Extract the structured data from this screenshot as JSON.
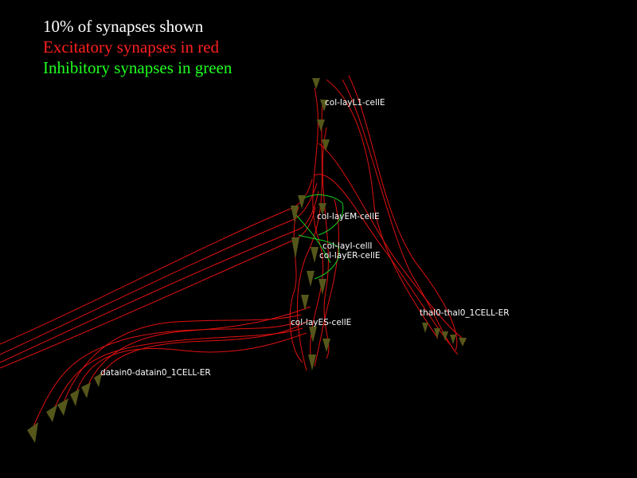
{
  "legend": {
    "lines": [
      "10% of synapses shown",
      "Excitatory synapses in red",
      "Inhibitory synapses in green"
    ]
  },
  "labels": [
    "col-layL1-cellE",
    "col-layEM-cellE",
    "col-layI-cellI",
    "col-layER-cellE",
    "col-layES-cellE",
    "thal0-thal0_1CELL-ER",
    "datain0-datain0_1CELL-ER"
  ]
}
